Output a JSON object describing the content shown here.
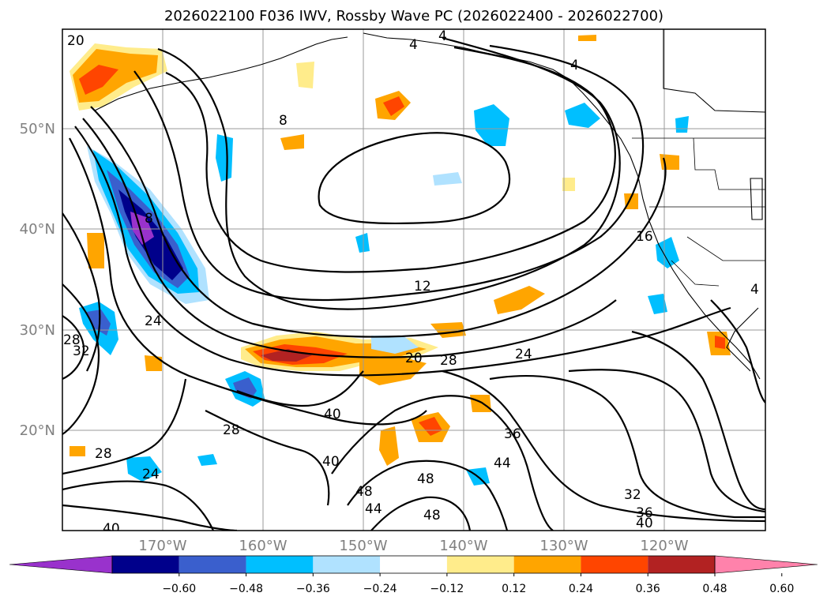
{
  "title": "2026022100 F036 IWV, Rossby Wave PC (2026022400 - 2026022700)",
  "map": {
    "lat_labels": [
      "50°N",
      "40°N",
      "30°N",
      "20°N"
    ],
    "lon_labels": [
      "170°W",
      "160°W",
      "150°W",
      "140°W",
      "130°W",
      "120°W"
    ],
    "lat_range": [
      10,
      60
    ],
    "lon_range": [
      -180,
      -110
    ]
  },
  "contour_labels": [
    "20",
    "4",
    "4",
    "8",
    "4",
    "8",
    "12",
    "16",
    "24",
    "20",
    "28",
    "24",
    "28",
    "32",
    "28",
    "28",
    "24",
    "40",
    "40",
    "36",
    "44",
    "48",
    "48",
    "48",
    "44",
    "32",
    "36",
    "40",
    "40",
    "4"
  ],
  "colorbar": {
    "colors": [
      "#9932cc",
      "#00008b",
      "#3a5fcd",
      "#00bfff",
      "#b0e2ff",
      "#ffffff",
      "#ffec8b",
      "#ffa500",
      "#ff4500",
      "#b22222",
      "#ff82ab"
    ],
    "tick_labels": [
      "−0.60",
      "−0.48",
      "−0.36",
      "−0.24",
      "−0.12",
      "0.12",
      "0.24",
      "0.36",
      "0.48",
      "0.60"
    ]
  },
  "chart_data": {
    "type": "heatmap",
    "title": "2026022100 F036 IWV, Rossby Wave PC (2026022400 - 2026022700)",
    "variable_contours": "IWV",
    "variable_shaded": "Rossby Wave PC",
    "colorbar_levels": [
      -0.6,
      -0.48,
      -0.36,
      -0.24,
      -0.12,
      0.12,
      0.24,
      0.36,
      0.48,
      0.6
    ],
    "extend": "both"
  }
}
